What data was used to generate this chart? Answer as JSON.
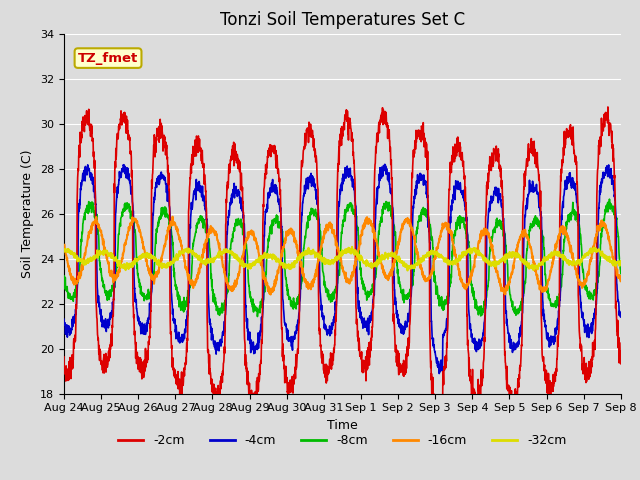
{
  "title": "Tonzi Soil Temperatures Set C",
  "xlabel": "Time",
  "ylabel": "Soil Temperature (C)",
  "ylim": [
    18,
    34
  ],
  "yticks": [
    18,
    20,
    22,
    24,
    26,
    28,
    30,
    32,
    34
  ],
  "x_labels": [
    "Aug 24",
    "Aug 25",
    "Aug 26",
    "Aug 27",
    "Aug 28",
    "Aug 29",
    "Aug 30",
    "Aug 31",
    "Sep 1",
    "Sep 2",
    "Sep 3",
    "Sep 4",
    "Sep 5",
    "Sep 6",
    "Sep 7",
    "Sep 8"
  ],
  "annotation_text": "TZ_fmet",
  "annotation_bg": "#ffffcc",
  "annotation_border": "#bbaa00",
  "annotation_text_color": "#cc0000",
  "series": [
    {
      "label": "-2cm",
      "color": "#dd0000",
      "lw": 1.2
    },
    {
      "label": "-4cm",
      "color": "#0000cc",
      "lw": 1.2
    },
    {
      "label": "-8cm",
      "color": "#00bb00",
      "lw": 1.2
    },
    {
      "label": "-16cm",
      "color": "#ff8800",
      "lw": 1.5
    },
    {
      "label": "-32cm",
      "color": "#dddd00",
      "lw": 1.5
    }
  ],
  "bg_color": "#dcdcdc",
  "grid_color": "#ffffff",
  "title_fontsize": 12,
  "axis_label_fontsize": 9,
  "tick_fontsize": 8,
  "legend_fontsize": 9
}
